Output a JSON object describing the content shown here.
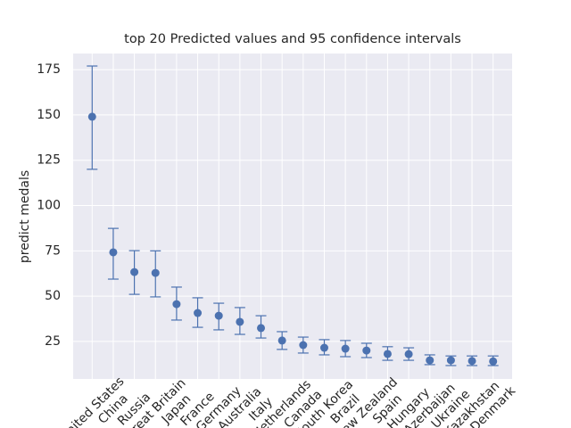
{
  "chart_data": {
    "type": "errorbar",
    "title": "top 20 Predicted values and 95 confidence intervals",
    "y_label": "predict medals",
    "categories": [
      "United States",
      "China",
      "Russia",
      "Great Britain",
      "Japan",
      "France",
      "Germany",
      "Australia",
      "Italy",
      "Netherlands",
      "Canada",
      "South Korea",
      "Brazil",
      "New Zealand",
      "Spain",
      "Hungary",
      "Azerbaijan",
      "Ukraine",
      "Kazakhstan",
      "Denmark"
    ],
    "values": [
      149,
      74.2,
      63.3,
      62.8,
      45.6,
      40.7,
      39.2,
      35.8,
      32.4,
      25.5,
      23,
      21.5,
      21,
      20,
      18.1,
      18,
      14.6,
      14.6,
      14.2,
      14
    ],
    "lower": [
      120,
      59.4,
      51,
      49.6,
      36.8,
      32.8,
      31.4,
      28.9,
      26.9,
      20.6,
      18.6,
      17.6,
      16.6,
      16.1,
      14.6,
      14.6,
      12.2,
      11.7,
      11.7,
      11.7
    ],
    "upper": [
      177,
      87.4,
      75.1,
      75,
      55,
      49.1,
      46.1,
      43.7,
      39.2,
      30.4,
      27.4,
      26,
      25.5,
      24,
      22.1,
      21.5,
      17.6,
      17,
      17,
      17
    ],
    "color": "#4c72b0",
    "ylim": [
      4.3,
      183.9
    ],
    "yticks": [
      25,
      50,
      75,
      100,
      125,
      150,
      175
    ],
    "grid": true
  }
}
